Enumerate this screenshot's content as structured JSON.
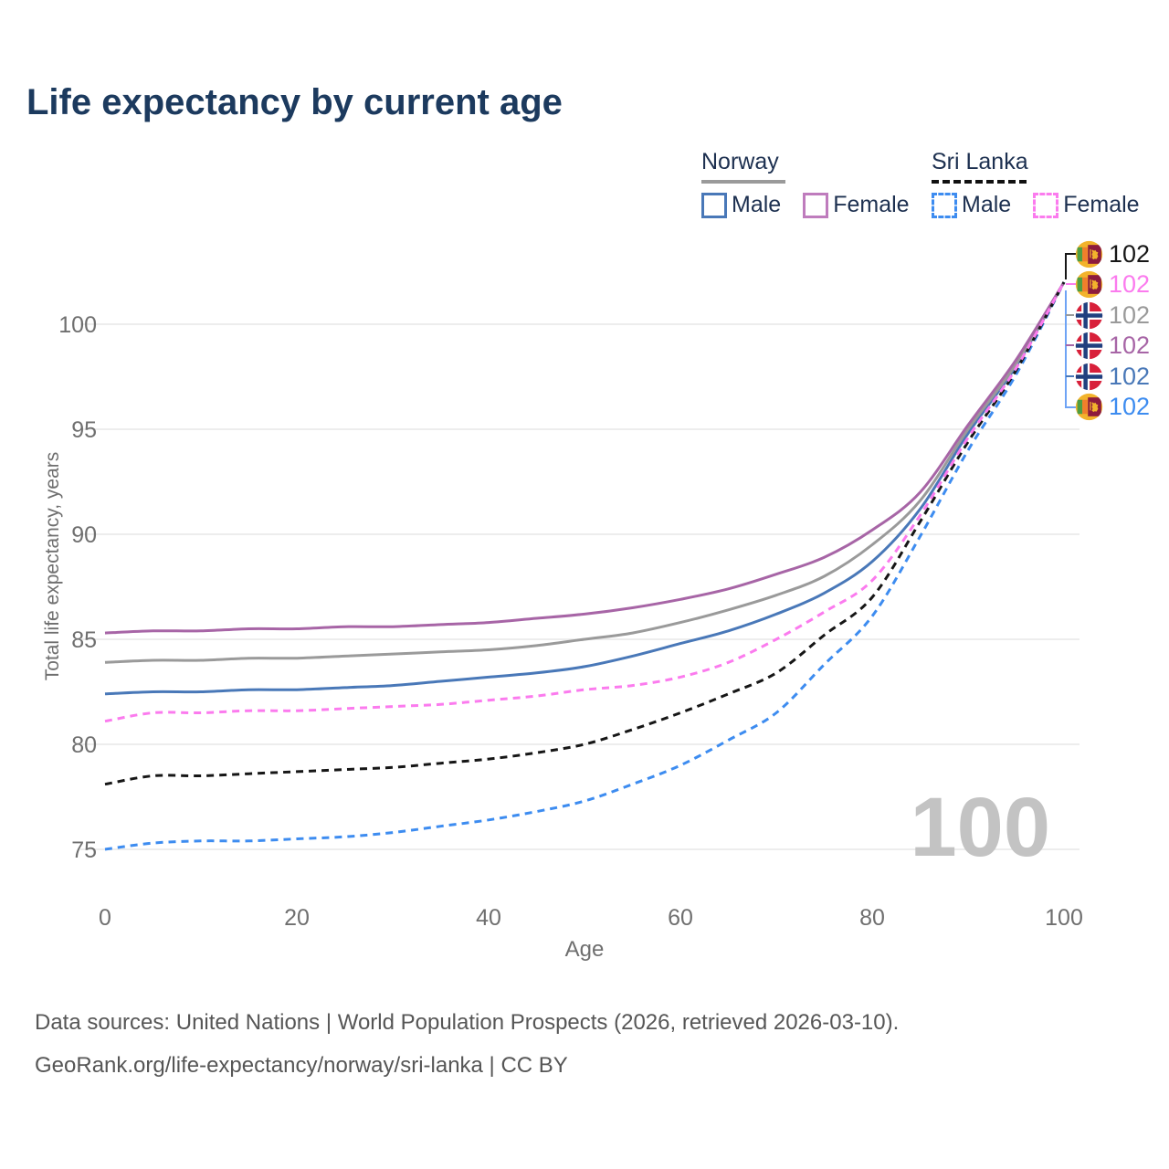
{
  "title": "Life expectancy by current age",
  "legend": {
    "norway": {
      "label": "Norway",
      "male": "Male",
      "female": "Female"
    },
    "sri_lanka": {
      "label": "Sri Lanka",
      "male": "Male",
      "female": "Female"
    }
  },
  "colors": {
    "title_text": "#1c3a5e",
    "legend_text": "#1d3050",
    "axis_text": "#6f6f6f",
    "gridline": "#e7e7e7",
    "watermark": "#c3c3c3",
    "footer_text": "#565656",
    "norway_male": "#4978b8",
    "norway_both": "#9a9a9a",
    "norway_female": "#a765a6",
    "sri_lanka_male": "#3d8cf0",
    "sri_lanka_both": "#161616",
    "sri_lanka_female": "#fb7bee"
  },
  "chart_data": {
    "type": "line",
    "title": "Life expectancy by current age",
    "xlabel": "Age",
    "ylabel": "Total life expectancy, years",
    "x": [
      0,
      5,
      10,
      15,
      20,
      25,
      30,
      35,
      40,
      45,
      50,
      55,
      60,
      65,
      70,
      75,
      80,
      85,
      90,
      95,
      100
    ],
    "x_ticks": [
      0,
      20,
      40,
      60,
      80,
      100
    ],
    "y_ticks": [
      75,
      80,
      85,
      90,
      95,
      100
    ],
    "xlim": [
      0,
      100
    ],
    "ylim": [
      73,
      103
    ],
    "grid": "horizontal-only",
    "legend_position": "top-right",
    "series": [
      {
        "name": "Norway Male",
        "country": "Norway",
        "sex": "Male",
        "style": "solid",
        "color": "#4978b8",
        "values": [
          82.4,
          82.5,
          82.5,
          82.6,
          82.6,
          82.7,
          82.8,
          83.0,
          83.2,
          83.4,
          83.7,
          84.2,
          84.8,
          85.4,
          86.2,
          87.2,
          88.7,
          91.2,
          94.8,
          98.0,
          102
        ]
      },
      {
        "name": "Norway Both sexes",
        "country": "Norway",
        "sex": "Both",
        "style": "solid",
        "color": "#9a9a9a",
        "values": [
          83.9,
          84.0,
          84.0,
          84.1,
          84.1,
          84.2,
          84.3,
          84.4,
          84.5,
          84.7,
          85.0,
          85.3,
          85.8,
          86.4,
          87.1,
          88.0,
          89.5,
          91.6,
          95.0,
          98.1,
          102
        ]
      },
      {
        "name": "Norway Female",
        "country": "Norway",
        "sex": "Female",
        "style": "solid",
        "color": "#a765a6",
        "values": [
          85.3,
          85.4,
          85.4,
          85.5,
          85.5,
          85.6,
          85.6,
          85.7,
          85.8,
          86.0,
          86.2,
          86.5,
          86.9,
          87.4,
          88.1,
          88.9,
          90.2,
          92.0,
          95.2,
          98.3,
          102
        ]
      },
      {
        "name": "Sri Lanka Male",
        "country": "Sri Lanka",
        "sex": "Male",
        "style": "dashed",
        "color": "#3d8cf0",
        "values": [
          75.0,
          75.3,
          75.4,
          75.4,
          75.5,
          75.6,
          75.8,
          76.1,
          76.4,
          76.8,
          77.3,
          78.1,
          79.0,
          80.2,
          81.5,
          83.8,
          86.1,
          89.9,
          94.0,
          97.6,
          102
        ]
      },
      {
        "name": "Sri Lanka Both sexes",
        "country": "Sri Lanka",
        "sex": "Both",
        "style": "dashed",
        "color": "#161616",
        "values": [
          78.1,
          78.5,
          78.5,
          78.6,
          78.7,
          78.8,
          78.9,
          79.1,
          79.3,
          79.6,
          80.0,
          80.7,
          81.5,
          82.4,
          83.4,
          85.2,
          87.0,
          90.6,
          94.4,
          97.8,
          102
        ]
      },
      {
        "name": "Sri Lanka Female",
        "country": "Sri Lanka",
        "sex": "Female",
        "style": "dashed",
        "color": "#fb7bee",
        "values": [
          81.1,
          81.5,
          81.5,
          81.6,
          81.6,
          81.7,
          81.8,
          81.9,
          82.1,
          82.3,
          82.6,
          82.8,
          83.2,
          83.9,
          85.0,
          86.3,
          87.8,
          90.9,
          94.6,
          97.9,
          102
        ]
      }
    ],
    "end_labels": [
      {
        "series": "Sri Lanka Both sexes",
        "flag": "sri-lanka",
        "value": "102",
        "color": "#161616"
      },
      {
        "series": "Sri Lanka Female",
        "flag": "sri-lanka",
        "value": "102",
        "color": "#fb7bee"
      },
      {
        "series": "Norway Both sexes",
        "flag": "norway",
        "value": "102",
        "color": "#9a9a9a"
      },
      {
        "series": "Norway Female",
        "flag": "norway",
        "value": "102",
        "color": "#a765a6"
      },
      {
        "series": "Norway Male",
        "flag": "norway",
        "value": "102",
        "color": "#4978b8"
      },
      {
        "series": "Sri Lanka Male",
        "flag": "sri-lanka",
        "value": "102",
        "color": "#3d8cf0"
      }
    ],
    "watermark": "100"
  },
  "footer": {
    "line1": "Data sources: United Nations | World Population Prospects (2026, retrieved 2026-03-10).",
    "line2": "GeoRank.org/life-expectancy/norway/sri-lanka | CC BY"
  }
}
